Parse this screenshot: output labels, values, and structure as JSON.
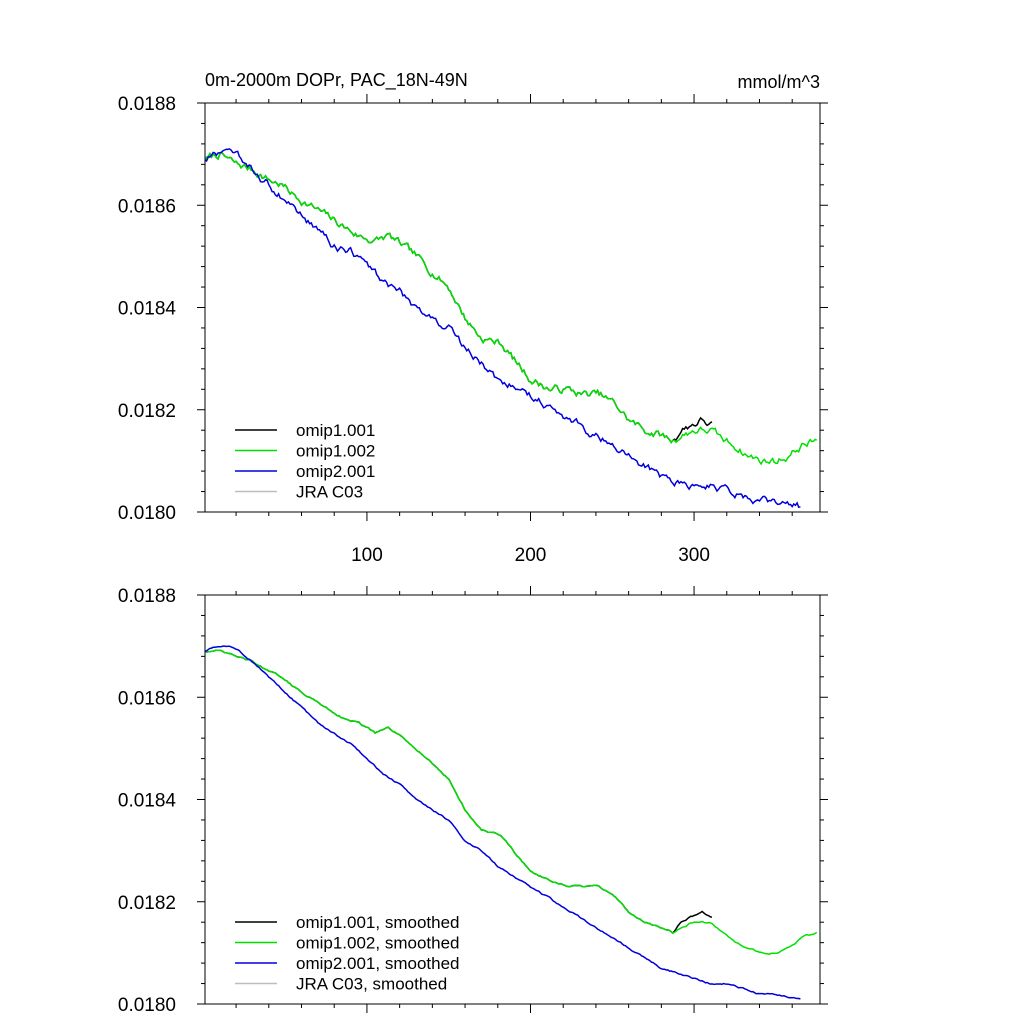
{
  "page": {
    "title_left": "0m-2000m DOPr, PAC_18N-49N",
    "title_right": "mmol/m^3"
  },
  "colors": {
    "omip1_001": "#000000",
    "omip1_002": "#00e000",
    "omip2_001": "#0000dd",
    "jra_c03": "#bdbdbd"
  },
  "chart_data": [
    {
      "type": "line",
      "title": "0m-2000m DOPr, PAC_18N-49N",
      "units": "mmol/m^3",
      "xlim": [
        1,
        377
      ],
      "ylim": [
        0.018,
        0.0188
      ],
      "xticks": [
        100,
        200,
        300
      ],
      "xtick_labels": [
        "100",
        "200",
        "300"
      ],
      "yticks": [
        0.018,
        0.0182,
        0.0184,
        0.0186,
        0.0188
      ],
      "ytick_labels": [
        "0.0180",
        "0.0182",
        "0.0184",
        "0.0186",
        "0.0188"
      ],
      "grid": false,
      "legend_position": "bottom-left",
      "noise": 1.2e-05,
      "series": [
        {
          "name": "omip1.001",
          "color_key": "omip1_001",
          "points": [
            [
              1,
              0.01869
            ],
            [
              10,
              0.0187
            ],
            [
              20,
              0.01868
            ],
            [
              30,
              0.01867
            ],
            [
              40,
              0.01865
            ],
            [
              48,
              0.01864
            ],
            [
              55,
              0.01862
            ],
            [
              65,
              0.0186
            ],
            [
              75,
              0.01858
            ],
            [
              85,
              0.01856
            ],
            [
              95,
              0.01854
            ],
            [
              105,
              0.01853
            ],
            [
              113,
              0.01854
            ],
            [
              122,
              0.01852
            ],
            [
              130,
              0.0185
            ],
            [
              140,
              0.01847
            ],
            [
              150,
              0.01844
            ],
            [
              160,
              0.01838
            ],
            [
              170,
              0.01834
            ],
            [
              182,
              0.01833
            ],
            [
              192,
              0.01829
            ],
            [
              200,
              0.01826
            ],
            [
              212,
              0.01824
            ],
            [
              222,
              0.01824
            ],
            [
              232,
              0.01823
            ],
            [
              242,
              0.01823
            ],
            [
              252,
              0.01821
            ],
            [
              260,
              0.01818
            ],
            [
              270,
              0.01816
            ],
            [
              280,
              0.01815
            ],
            [
              287,
              0.01814
            ],
            [
              292,
              0.01816
            ],
            [
              298,
              0.01817
            ],
            [
              305,
              0.01818
            ],
            [
              311,
              0.01817
            ]
          ]
        },
        {
          "name": "omip1.002",
          "color_key": "omip1_002",
          "points": [
            [
              1,
              0.01869
            ],
            [
              10,
              0.0187
            ],
            [
              20,
              0.01868
            ],
            [
              30,
              0.01867
            ],
            [
              40,
              0.01865
            ],
            [
              48,
              0.01864
            ],
            [
              55,
              0.01862
            ],
            [
              65,
              0.0186
            ],
            [
              75,
              0.01858
            ],
            [
              85,
              0.01856
            ],
            [
              95,
              0.01854
            ],
            [
              105,
              0.01853
            ],
            [
              113,
              0.01854
            ],
            [
              122,
              0.01852
            ],
            [
              130,
              0.0185
            ],
            [
              140,
              0.01847
            ],
            [
              150,
              0.01844
            ],
            [
              160,
              0.01838
            ],
            [
              170,
              0.01834
            ],
            [
              182,
              0.01833
            ],
            [
              192,
              0.01829
            ],
            [
              200,
              0.01826
            ],
            [
              212,
              0.01824
            ],
            [
              222,
              0.01824
            ],
            [
              232,
              0.01823
            ],
            [
              242,
              0.01823
            ],
            [
              252,
              0.01821
            ],
            [
              260,
              0.01818
            ],
            [
              270,
              0.01816
            ],
            [
              280,
              0.01815
            ],
            [
              287,
              0.01814
            ],
            [
              293,
              0.01815
            ],
            [
              300,
              0.01816
            ],
            [
              310,
              0.01816
            ],
            [
              318,
              0.01814
            ],
            [
              325,
              0.01813
            ],
            [
              333,
              0.01811
            ],
            [
              342,
              0.0181
            ],
            [
              350,
              0.0181
            ],
            [
              358,
              0.01811
            ],
            [
              366,
              0.01813
            ],
            [
              375,
              0.01814
            ]
          ]
        },
        {
          "name": "omip2.001",
          "color_key": "omip2_001",
          "points": [
            [
              1,
              0.01869
            ],
            [
              8,
              0.0187
            ],
            [
              15,
              0.0187
            ],
            [
              22,
              0.01869
            ],
            [
              30,
              0.01867
            ],
            [
              40,
              0.01864
            ],
            [
              50,
              0.01861
            ],
            [
              60,
              0.01858
            ],
            [
              70,
              0.01855
            ],
            [
              80,
              0.01852
            ],
            [
              90,
              0.01851
            ],
            [
              100,
              0.01848
            ],
            [
              110,
              0.01845
            ],
            [
              120,
              0.01843
            ],
            [
              130,
              0.0184
            ],
            [
              140,
              0.01838
            ],
            [
              150,
              0.01836
            ],
            [
              160,
              0.01832
            ],
            [
              170,
              0.01829
            ],
            [
              180,
              0.01826
            ],
            [
              190,
              0.01825
            ],
            [
              200,
              0.01823
            ],
            [
              210,
              0.01821
            ],
            [
              220,
              0.01819
            ],
            [
              230,
              0.01817
            ],
            [
              240,
              0.01815
            ],
            [
              250,
              0.01813
            ],
            [
              260,
              0.01811
            ],
            [
              270,
              0.01809
            ],
            [
              280,
              0.01807
            ],
            [
              290,
              0.01806
            ],
            [
              300,
              0.01805
            ],
            [
              310,
              0.01805
            ],
            [
              320,
              0.01804
            ],
            [
              330,
              0.01803
            ],
            [
              340,
              0.01802
            ],
            [
              350,
              0.01802
            ],
            [
              365,
              0.01801
            ]
          ]
        },
        {
          "name": "JRA C03",
          "color_key": "jra_c03",
          "points": []
        }
      ]
    },
    {
      "type": "line",
      "title": "",
      "xlim": [
        1,
        377
      ],
      "ylim": [
        0.018,
        0.0188
      ],
      "xticks": [
        100,
        200,
        300
      ],
      "xtick_labels": [],
      "yticks": [
        0.018,
        0.0182,
        0.0184,
        0.0186,
        0.0188
      ],
      "ytick_labels": [
        "0.0180",
        "0.0182",
        "0.0184",
        "0.0186",
        "0.0188"
      ],
      "grid": false,
      "legend_position": "bottom-left",
      "noise": 2.5e-06,
      "series": [
        {
          "name": "omip1.001, smoothed",
          "color_key": "omip1_001",
          "points": [
            [
              1,
              0.01869
            ],
            [
              10,
              0.01869
            ],
            [
              20,
              0.01868
            ],
            [
              30,
              0.01867
            ],
            [
              40,
              0.01865
            ],
            [
              48,
              0.01864
            ],
            [
              55,
              0.01862
            ],
            [
              65,
              0.0186
            ],
            [
              75,
              0.01858
            ],
            [
              85,
              0.01856
            ],
            [
              95,
              0.01855
            ],
            [
              105,
              0.01853
            ],
            [
              113,
              0.01854
            ],
            [
              122,
              0.01852
            ],
            [
              130,
              0.0185
            ],
            [
              140,
              0.01847
            ],
            [
              150,
              0.01844
            ],
            [
              160,
              0.01838
            ],
            [
              170,
              0.01834
            ],
            [
              182,
              0.01833
            ],
            [
              192,
              0.01829
            ],
            [
              200,
              0.01826
            ],
            [
              212,
              0.01824
            ],
            [
              222,
              0.01823
            ],
            [
              232,
              0.01823
            ],
            [
              242,
              0.01823
            ],
            [
              252,
              0.01821
            ],
            [
              260,
              0.01818
            ],
            [
              270,
              0.01816
            ],
            [
              280,
              0.01815
            ],
            [
              287,
              0.01814
            ],
            [
              292,
              0.01816
            ],
            [
              298,
              0.01817
            ],
            [
              305,
              0.01818
            ],
            [
              311,
              0.01817
            ]
          ]
        },
        {
          "name": "omip1.002, smoothed",
          "color_key": "omip1_002",
          "points": [
            [
              1,
              0.01869
            ],
            [
              10,
              0.01869
            ],
            [
              20,
              0.01868
            ],
            [
              30,
              0.01867
            ],
            [
              40,
              0.01865
            ],
            [
              48,
              0.01864
            ],
            [
              55,
              0.01862
            ],
            [
              65,
              0.0186
            ],
            [
              75,
              0.01858
            ],
            [
              85,
              0.01856
            ],
            [
              95,
              0.01855
            ],
            [
              105,
              0.01853
            ],
            [
              113,
              0.01854
            ],
            [
              122,
              0.01852
            ],
            [
              130,
              0.0185
            ],
            [
              140,
              0.01847
            ],
            [
              150,
              0.01844
            ],
            [
              160,
              0.01838
            ],
            [
              170,
              0.01834
            ],
            [
              182,
              0.01833
            ],
            [
              192,
              0.01829
            ],
            [
              200,
              0.01826
            ],
            [
              212,
              0.01824
            ],
            [
              222,
              0.01823
            ],
            [
              232,
              0.01823
            ],
            [
              242,
              0.01823
            ],
            [
              252,
              0.01821
            ],
            [
              260,
              0.01818
            ],
            [
              270,
              0.01816
            ],
            [
              280,
              0.01815
            ],
            [
              287,
              0.01814
            ],
            [
              293,
              0.01815
            ],
            [
              300,
              0.01816
            ],
            [
              310,
              0.01816
            ],
            [
              318,
              0.01814
            ],
            [
              325,
              0.01812
            ],
            [
              333,
              0.01811
            ],
            [
              342,
              0.0181
            ],
            [
              350,
              0.0181
            ],
            [
              358,
              0.01811
            ],
            [
              366,
              0.01813
            ],
            [
              375,
              0.01814
            ]
          ]
        },
        {
          "name": "omip2.001, smoothed",
          "color_key": "omip2_001",
          "points": [
            [
              1,
              0.01869
            ],
            [
              8,
              0.0187
            ],
            [
              15,
              0.0187
            ],
            [
              22,
              0.01869
            ],
            [
              30,
              0.01867
            ],
            [
              40,
              0.01864
            ],
            [
              50,
              0.01861
            ],
            [
              60,
              0.01858
            ],
            [
              70,
              0.01855
            ],
            [
              80,
              0.01853
            ],
            [
              90,
              0.01851
            ],
            [
              100,
              0.01848
            ],
            [
              110,
              0.01845
            ],
            [
              120,
              0.01843
            ],
            [
              130,
              0.0184
            ],
            [
              140,
              0.01838
            ],
            [
              150,
              0.01836
            ],
            [
              160,
              0.01832
            ],
            [
              170,
              0.0183
            ],
            [
              180,
              0.01827
            ],
            [
              190,
              0.01825
            ],
            [
              200,
              0.01823
            ],
            [
              210,
              0.01821
            ],
            [
              220,
              0.01819
            ],
            [
              230,
              0.01817
            ],
            [
              240,
              0.01815
            ],
            [
              250,
              0.01813
            ],
            [
              260,
              0.01811
            ],
            [
              270,
              0.01809
            ],
            [
              280,
              0.01807
            ],
            [
              290,
              0.01806
            ],
            [
              300,
              0.01805
            ],
            [
              310,
              0.01804
            ],
            [
              320,
              0.01804
            ],
            [
              330,
              0.01803
            ],
            [
              340,
              0.01802
            ],
            [
              350,
              0.01802
            ],
            [
              365,
              0.01801
            ]
          ]
        },
        {
          "name": "JRA C03, smoothed",
          "color_key": "jra_c03",
          "points": []
        }
      ]
    }
  ]
}
